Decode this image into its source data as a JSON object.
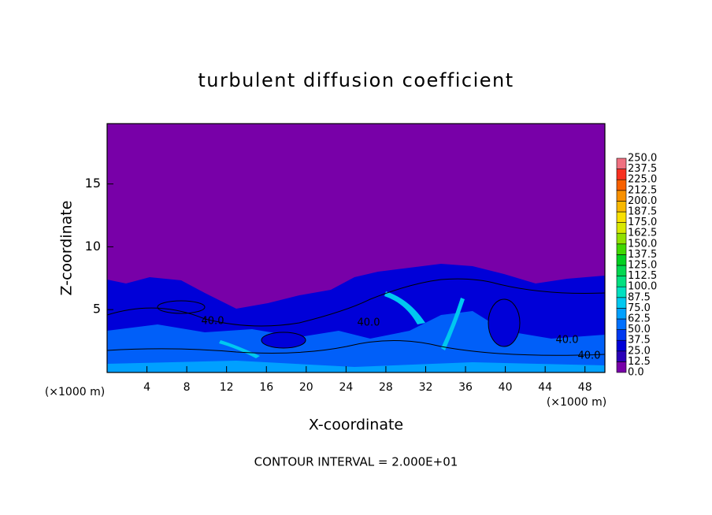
{
  "chart_data": {
    "type": "contour",
    "title": "turbulent diffusion coefficient",
    "x_label": "X-coordinate",
    "y_label": "Z-coordinate",
    "x_unit": "(×1000 m)",
    "footer": "CONTOUR INTERVAL = 2.000E+01",
    "xlim": [
      0,
      50
    ],
    "xticks": [
      4,
      8,
      12,
      16,
      20,
      24,
      28,
      32,
      36,
      40,
      44,
      48
    ],
    "ylim": [
      0,
      19.8
    ],
    "yticks": [
      5,
      10,
      15
    ],
    "contour_labels": [
      "40.0",
      "40.0",
      "40.0",
      "40.0"
    ],
    "colorbar": {
      "ticks": [
        {
          "value": 0,
          "label": "0.0"
        },
        {
          "value": 12.5,
          "label": "12.5"
        },
        {
          "value": 25,
          "label": "25.0"
        },
        {
          "value": 37.5,
          "label": "37.5"
        },
        {
          "value": 50,
          "label": "50.0"
        },
        {
          "value": 62.5,
          "label": "62.5"
        },
        {
          "value": 75,
          "label": "75.0"
        },
        {
          "value": 87.5,
          "label": "87.5"
        },
        {
          "value": 100,
          "label": "100.0"
        },
        {
          "value": 112.5,
          "label": "112.5"
        },
        {
          "value": 125,
          "label": "125.0"
        },
        {
          "value": 137.5,
          "label": "137.5"
        },
        {
          "value": 150,
          "label": "150.0"
        },
        {
          "value": 162.5,
          "label": "162.5"
        },
        {
          "value": 175,
          "label": "175.0"
        },
        {
          "value": 187.5,
          "label": "187.5"
        },
        {
          "value": 200,
          "label": "200.0"
        },
        {
          "value": 212.5,
          "label": "212.5"
        },
        {
          "value": 225,
          "label": "225.0"
        },
        {
          "value": 237.5,
          "label": "237.5"
        },
        {
          "value": 250,
          "label": "250.0"
        }
      ],
      "colors": [
        "#7800a8",
        "#2a00b8",
        "#0000d8",
        "#0038f0",
        "#0070ff",
        "#00a0ff",
        "#00c8f0",
        "#00e0c0",
        "#00e080",
        "#00d850",
        "#00d020",
        "#40d800",
        "#90e000",
        "#d8e800",
        "#f8e000",
        "#f8b800",
        "#f89000",
        "#f86000",
        "#f83020",
        "#f07080"
      ]
    }
  }
}
